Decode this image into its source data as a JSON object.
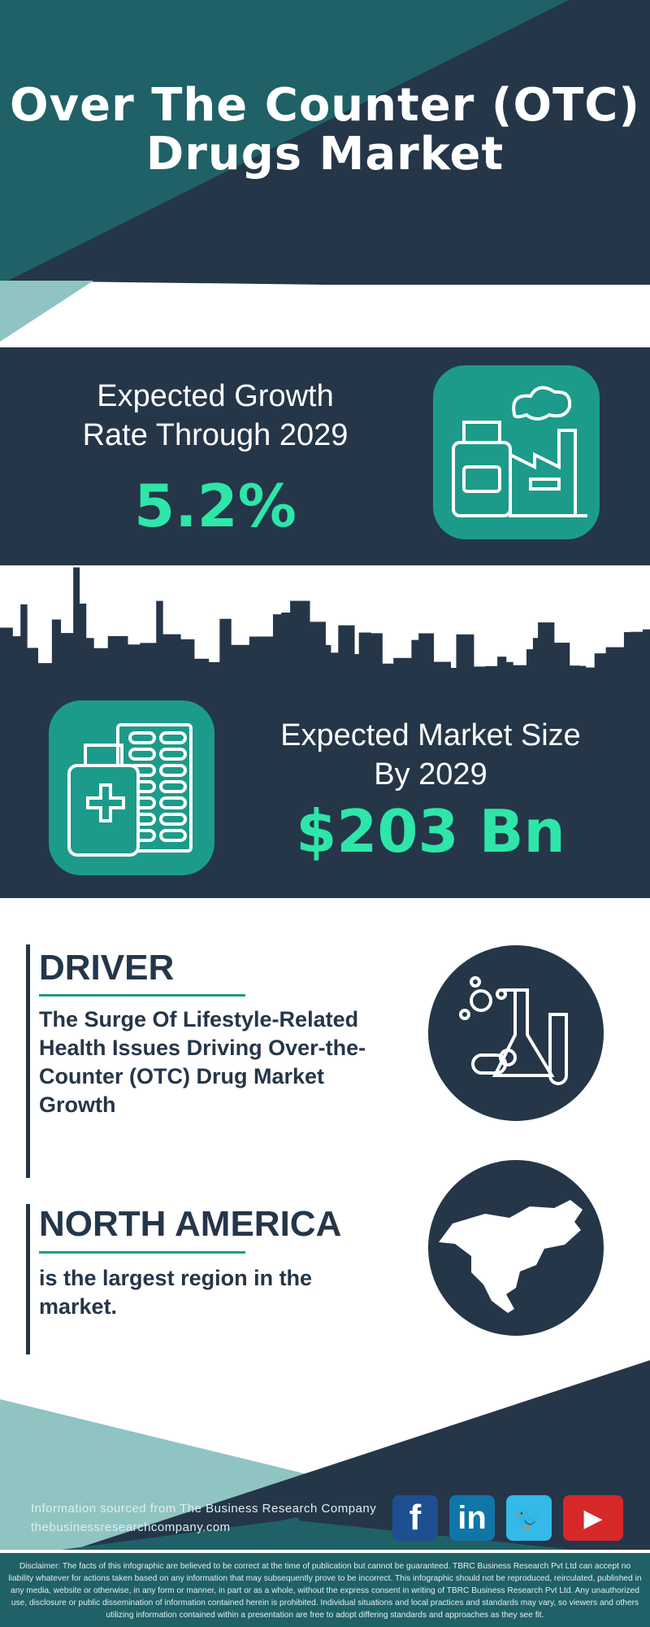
{
  "header": {
    "title_line1": "Over The Counter (OTC)",
    "title_line2": "Drugs Market"
  },
  "growth": {
    "label_line1": "Expected Growth",
    "label_line2": "Rate Through 2029",
    "value": "5.2%",
    "icon": "medicine-factory-icon"
  },
  "market_size": {
    "label_line1": "Expected Market Size",
    "label_line2": "By 2029",
    "value": "$203 Bn",
    "icon": "medicine-bottle-pills-icon"
  },
  "driver": {
    "heading": "DRIVER",
    "text": "The Surge Of Lifestyle-Related Health Issues Driving Over-the-Counter (OTC) Drug Market Growth",
    "icon": "lab-flask-icon"
  },
  "region": {
    "heading": "NORTH AMERICA",
    "text": "is the largest region in the market.",
    "icon": "north-america-map-icon"
  },
  "footer": {
    "source": "Information sourced from The Business Research Company",
    "website": "thebusinessresearchcompany.com",
    "social": [
      {
        "name": "facebook",
        "glyph": "f",
        "color": "#1d4f91"
      },
      {
        "name": "linkedin",
        "glyph": "in",
        "color": "#0e76a8"
      },
      {
        "name": "twitter",
        "glyph": "🐦",
        "color": "#35b9e9"
      },
      {
        "name": "youtube",
        "glyph": "▶",
        "color": "#d7282a"
      }
    ],
    "disclaimer": "Disclaimer: The facts of this infographic are believed to be correct at the time of publication but cannot be guaranteed. TBRC Business Research Pvt Ltd can accept no liability whatever for actions taken based on any information that may subsequently prove to be incorrect. This infographic should not be reproduced, reirculated, published in any media, website or otherwise, in any form or manner, in part or as a whole, without the express consent in writing of TBRC Business Research Pvt Ltd. Any unauthorized use, disclosure or public dissemination of information contained herein is prohibited. Individual situations and local practices and standards may vary, so viewers and others utilizing information contained within a presentation are free to adopt differing standards and approaches as they see fit."
  },
  "colors": {
    "navy": "#253649",
    "teal": "#1f6166",
    "accent": "#1d9b8a",
    "highlight": "#2ee6a8",
    "light_teal": "#8fc4c2"
  }
}
